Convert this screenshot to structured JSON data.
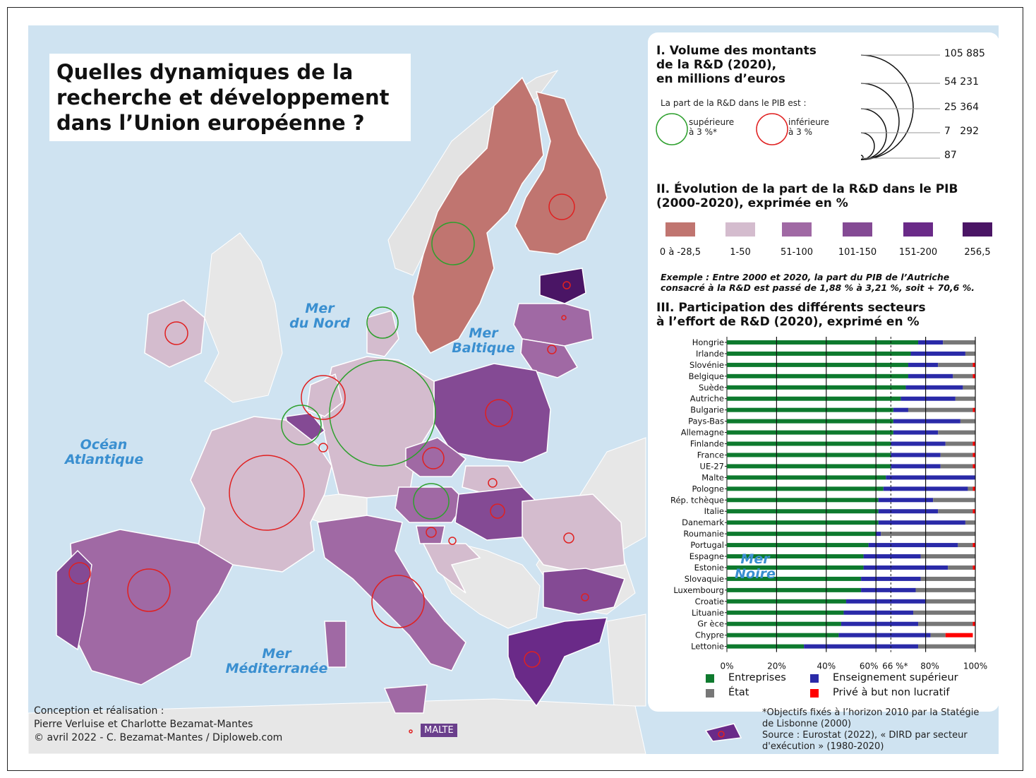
{
  "title_lines": [
    "Quelles dynamiques de la",
    "recherche et développement",
    "dans l’Union européenne ?"
  ],
  "seas": [
    {
      "label1": "Mer",
      "label2": "du Nord"
    },
    {
      "label1": "Mer",
      "label2": "Baltique"
    },
    {
      "label1": "Océan",
      "label2": "Atlantique"
    },
    {
      "label1": "Mer",
      "label2": "Méditerranée"
    },
    {
      "label1": "Mer",
      "label2": "Noire"
    }
  ],
  "malta_label": "MALTE",
  "credits": [
    "Conception et réalisation :",
    "Pierre Verluise et Charlotte Bezamat-Mantes",
    "© avril 2022 - C. Bezamat-Mantes / Diploweb.com"
  ],
  "legend": {
    "sec1_title": [
      "I. Volume des montants",
      "de la R&D (2020),",
      "en millions d’euros"
    ],
    "sec1_sub": "La part de la R&D dans le PIB est :",
    "above": [
      "supérieure",
      "à 3 %*"
    ],
    "below": [
      "inférieure",
      "à 3 %"
    ],
    "volumes": [
      "105 885",
      "54 231",
      "25 364",
      "7   292",
      "87"
    ],
    "sec2_title": [
      "II. Évolution de la part de la R&D dans le PIB",
      "(2000-2020), exprimée en %"
    ],
    "classes": [
      {
        "label": "0 à -28,5",
        "color": "#c07570"
      },
      {
        "label": "1-50",
        "color": "#d4bcce"
      },
      {
        "label": "51-100",
        "color": "#a069a4"
      },
      {
        "label": "101-150",
        "color": "#844a94"
      },
      {
        "label": "151-200",
        "color": "#6a2a88"
      },
      {
        "label": "256,5",
        "color": "#4a1565"
      }
    ],
    "example": [
      "Exemple : Entre 2000 et 2020, la part du PIB de l’Autriche",
      "consacré à la R&D est passé de 1,88 % à 3,21 %, soit + 70,6 %."
    ],
    "sec3_title": [
      "III. Participation des différents secteurs",
      "à l’effort de R&D (2020), exprimé en %"
    ],
    "series_labels": [
      "Entreprises",
      "État",
      "Enseignement supérieur",
      "Privé à but non lucratif"
    ],
    "notes": [
      "*Objectifs fixés à l’horizon 2010 par la Statégie",
      "de Lisbonne (2000)",
      "Source : Eurostat (2022), « DIRD par secteur",
      "d'exécution » (1980-2020)"
    ]
  },
  "chart_data": {
    "type": "bar",
    "orientation": "horizontal-stacked",
    "categories": [
      "Hongrie",
      "Irlande",
      "Slovénie",
      "Belgique",
      "Suède",
      "Autriche",
      "Bulgarie",
      "Pays-Bas",
      "Allemagne",
      "Finlande",
      "France",
      "UE-27",
      "Malte",
      "Pologne",
      "Rép. tchèque",
      "Italie",
      "Danemark",
      "Roumanie",
      "Portugal",
      "Espagne",
      "Estonie",
      "Slovaquie",
      "Luxembourg",
      "Croatie",
      "Lituanie",
      "Gr èce",
      "Chypre",
      "Lettonie"
    ],
    "series": [
      {
        "name": "Entreprises",
        "color": "#0e7a2e",
        "values": [
          77,
          74,
          73,
          73,
          72,
          70,
          67,
          67,
          67,
          66,
          66,
          66,
          64,
          63,
          61,
          61,
          61,
          60,
          57,
          55,
          55,
          54,
          54,
          48,
          47,
          46,
          45,
          31
        ]
      },
      {
        "name": "Enseignement supérieur",
        "color": "#2a2aa8",
        "values": [
          10,
          22,
          12,
          18,
          23,
          22,
          6,
          27,
          18,
          22,
          20,
          20,
          36,
          34,
          22,
          24,
          35,
          2,
          36,
          23,
          34,
          24,
          22,
          32,
          28,
          31,
          37,
          46
        ]
      },
      {
        "name": "État",
        "color": "#777777",
        "values": [
          13,
          4,
          14,
          8,
          5,
          8,
          26,
          6,
          15,
          11,
          13,
          13,
          0,
          2,
          17,
          14,
          4,
          38,
          6,
          22,
          10,
          22,
          24,
          20,
          25,
          22,
          6,
          23
        ]
      },
      {
        "name": "Privé à but non lucratif",
        "color": "#ff0000",
        "values": [
          0,
          0,
          1,
          1,
          0,
          0,
          1,
          0,
          0,
          1,
          1,
          1,
          0,
          1,
          0,
          1,
          0,
          0,
          1,
          0,
          1,
          0,
          0,
          0,
          0,
          1,
          11,
          0
        ]
      }
    ],
    "xlim": [
      0,
      100
    ],
    "ticks": [
      "0%",
      "20%",
      "40%",
      "60%",
      "66 %*",
      "80%",
      "100%"
    ],
    "tick_values": [
      0,
      20,
      40,
      60,
      66,
      80,
      100
    ]
  }
}
